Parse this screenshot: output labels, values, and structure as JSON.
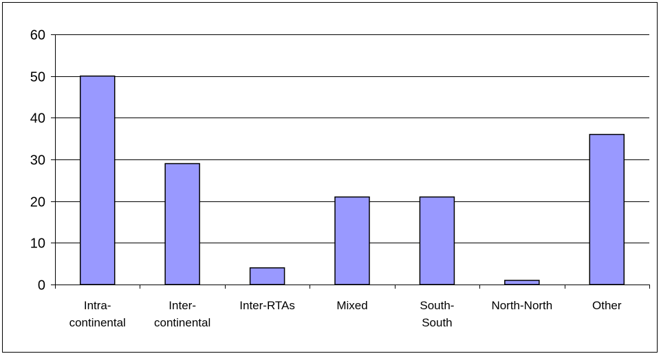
{
  "chart_data": {
    "type": "bar",
    "categories": [
      [
        "Intra-",
        "continental"
      ],
      [
        "Inter-",
        "continental"
      ],
      [
        "Inter-RTAs"
      ],
      [
        "Mixed"
      ],
      [
        "South-",
        "South"
      ],
      [
        "North-North"
      ],
      [
        "Other"
      ]
    ],
    "values": [
      50,
      29,
      4,
      21,
      21,
      1,
      36
    ],
    "ylim": [
      0,
      60
    ],
    "yticks": [
      0,
      10,
      20,
      30,
      40,
      50,
      60
    ],
    "title": "",
    "xlabel": "",
    "ylabel": "",
    "grid": true,
    "legend": "none",
    "bar_color": "#9999ff",
    "bar_edge_color": "#000000"
  }
}
